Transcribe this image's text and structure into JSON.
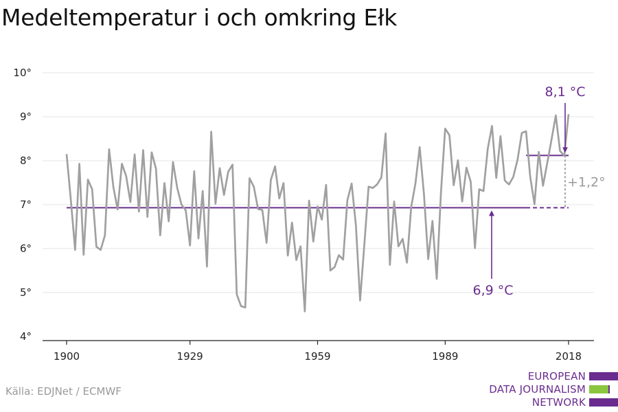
{
  "title": "Medeltemperatur i och omkring Ełk",
  "source": "Källa: EDJNet / ECMWF",
  "logo": {
    "lines": [
      "EUROPEAN",
      "DATA JOURNALISM",
      "NETWORK"
    ],
    "colors": {
      "primary": "#6a2c8f",
      "accent": "#8cc63f"
    }
  },
  "colors": {
    "series": "#a0a0a0",
    "reference": "#6a2c8f",
    "difference": "#a0a0a0"
  },
  "chart_data": {
    "type": "line",
    "title": "Medeltemperatur i och omkring Ełk",
    "x_ticks": [
      "1900",
      "1929",
      "1959",
      "1989",
      "2018"
    ],
    "x_tick_values": [
      1900,
      1929,
      1959,
      1989,
      2018
    ],
    "y_ticks": [
      "4°",
      "5°",
      "6°",
      "7°",
      "8°",
      "9°",
      "10°"
    ],
    "y_tick_values": [
      4,
      5,
      6,
      7,
      8,
      9,
      10
    ],
    "xlim": [
      1900,
      2018
    ],
    "ylim": [
      4,
      10
    ],
    "grid": "horizontal",
    "x": [
      1900,
      1901,
      1902,
      1903,
      1904,
      1905,
      1906,
      1907,
      1908,
      1909,
      1910,
      1911,
      1912,
      1913,
      1914,
      1915,
      1916,
      1917,
      1918,
      1919,
      1920,
      1921,
      1922,
      1923,
      1924,
      1925,
      1926,
      1927,
      1928,
      1929,
      1930,
      1931,
      1932,
      1933,
      1934,
      1935,
      1936,
      1937,
      1938,
      1939,
      1940,
      1941,
      1942,
      1943,
      1944,
      1945,
      1946,
      1947,
      1948,
      1949,
      1950,
      1951,
      1952,
      1953,
      1954,
      1955,
      1956,
      1957,
      1958,
      1959,
      1960,
      1961,
      1962,
      1963,
      1964,
      1965,
      1966,
      1967,
      1968,
      1969,
      1970,
      1971,
      1972,
      1973,
      1974,
      1975,
      1976,
      1977,
      1978,
      1979,
      1980,
      1981,
      1982,
      1983,
      1984,
      1985,
      1986,
      1987,
      1988,
      1989,
      1990,
      1991,
      1992,
      1993,
      1994,
      1995,
      1996,
      1997,
      1998,
      1999,
      2000,
      2001,
      2002,
      2003,
      2004,
      2005,
      2006,
      2007,
      2008,
      2009,
      2010,
      2011,
      2012,
      2013,
      2014,
      2015,
      2016,
      2017,
      2018
    ],
    "series": [
      {
        "values": [
          8.15,
          7.1,
          5.97,
          7.93,
          5.86,
          7.57,
          7.35,
          6.04,
          5.97,
          6.3,
          8.26,
          7.4,
          6.89,
          7.93,
          7.65,
          7.06,
          8.14,
          6.84,
          8.24,
          6.72,
          8.19,
          7.82,
          6.3,
          7.49,
          6.62,
          7.97,
          7.38,
          7.0,
          6.87,
          6.07,
          7.76,
          6.23,
          7.31,
          5.59,
          8.66,
          7.02,
          7.83,
          7.22,
          7.75,
          7.91,
          4.96,
          4.69,
          4.66,
          7.6,
          7.41,
          6.9,
          6.88,
          6.13,
          7.56,
          7.87,
          7.14,
          7.49,
          5.84,
          6.59,
          5.74,
          6.05,
          4.57,
          7.09,
          6.16,
          6.96,
          6.66,
          7.45,
          5.5,
          5.58,
          5.85,
          5.75,
          7.1,
          7.48,
          6.53,
          4.82,
          6.09,
          7.41,
          7.38,
          7.46,
          7.62,
          8.62,
          5.63,
          7.07,
          6.05,
          6.22,
          5.68,
          6.94,
          7.48,
          8.31,
          7.24,
          5.76,
          6.63,
          5.31,
          7.28,
          8.73,
          8.58,
          7.44,
          8.01,
          7.07,
          7.84,
          7.52,
          6.01,
          7.35,
          7.31,
          8.27,
          8.79,
          7.61,
          8.56,
          7.55,
          7.46,
          7.63,
          8.02,
          8.63,
          8.67,
          7.63,
          7.01,
          8.2,
          7.43,
          7.95,
          8.48,
          9.03,
          8.22,
          8.11,
          9.06
        ]
      }
    ],
    "annotations": [
      {
        "label": "6,9 °C",
        "value": 6.93,
        "x_start": 1900,
        "x_end": 2018
      },
      {
        "label": "8,1 °C",
        "value": 8.12,
        "x_start": 2008,
        "x_end": 2018
      },
      {
        "label": "+1,2°"
      }
    ]
  }
}
